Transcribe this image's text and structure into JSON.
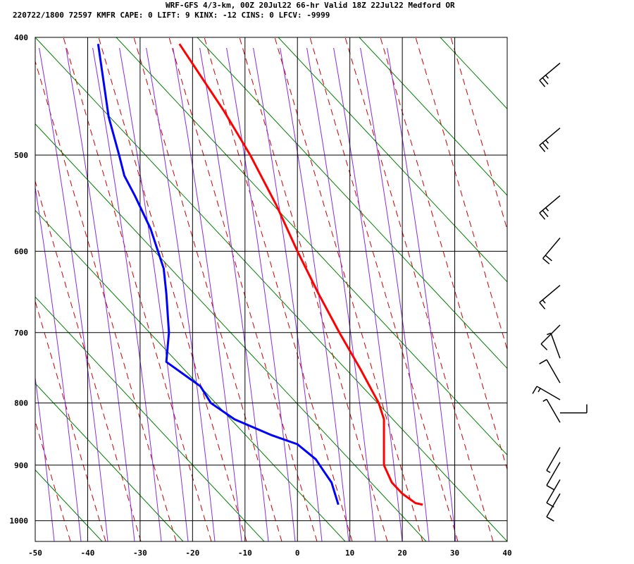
{
  "header": {
    "line1": "WRF-GFS 4/3-km, 00Z 20Jul22 66-hr Valid 18Z 22Jul22 Medford OR",
    "line2": "220722/1800 72597  KMFR    CAPE:      0 LIFT:      9 KINX:    -12 CINS:      0 LFCV: -9999"
  },
  "chart_data": {
    "type": "skew-t",
    "title": "WRF-GFS 4/3-km, 00Z 20Jul22 66-hr Valid 18Z 22Jul22 Medford OR",
    "xlabel": "",
    "ylabel": "",
    "pressure_log_scale": true,
    "xlim": [
      -50,
      40
    ],
    "ylim_hpa": [
      1040,
      400
    ],
    "x_ticks": [
      -50,
      -40,
      -30,
      -20,
      -10,
      0,
      10,
      20,
      30,
      40
    ],
    "x_tick_labels": [
      "-50",
      "-40",
      "-30",
      "-20",
      "-10",
      "0",
      "10",
      "20",
      "30",
      "40"
    ],
    "y_ticks": [
      400,
      500,
      600,
      700,
      800,
      900,
      1000
    ],
    "y_tick_labels": [
      "400",
      "500",
      "600",
      "700",
      "800",
      "900",
      "1000"
    ],
    "grid": true,
    "colors": {
      "temperature": "#ff0000",
      "dewpoint": "#0000ff",
      "isotherm": "#000000",
      "dry_adiabat": "#cc0000",
      "moist_adiabat": "#8a2be2",
      "mixing_ratio": "#008000",
      "wind_barb": "#000000"
    },
    "series": [
      {
        "name": "temperature",
        "points": [
          {
            "p": 970,
            "t": 23.9
          },
          {
            "p": 967,
            "t": 22.5
          },
          {
            "p": 950,
            "t": 20.0
          },
          {
            "p": 930,
            "t": 18.0
          },
          {
            "p": 900,
            "t": 16.5
          },
          {
            "p": 850,
            "t": 16.5
          },
          {
            "p": 825,
            "t": 16.5
          },
          {
            "p": 800,
            "t": 15.5
          },
          {
            "p": 750,
            "t": 12.0
          },
          {
            "p": 700,
            "t": 8.0
          },
          {
            "p": 650,
            "t": 4.0
          },
          {
            "p": 600,
            "t": 0.0
          },
          {
            "p": 550,
            "t": -4.0
          },
          {
            "p": 500,
            "t": -9.0
          },
          {
            "p": 460,
            "t": -14.0
          },
          {
            "p": 405,
            "t": -22.5
          }
        ]
      },
      {
        "name": "dewpoint",
        "points": [
          {
            "p": 970,
            "t": 7.8
          },
          {
            "p": 930,
            "t": 6.5
          },
          {
            "p": 910,
            "t": 5.0
          },
          {
            "p": 890,
            "t": 3.5
          },
          {
            "p": 865,
            "t": 0.0
          },
          {
            "p": 850,
            "t": -5.0
          },
          {
            "p": 825,
            "t": -12.0
          },
          {
            "p": 800,
            "t": -16.5
          },
          {
            "p": 775,
            "t": -18.5
          },
          {
            "p": 740,
            "t": -25.0
          },
          {
            "p": 700,
            "t": -24.5
          },
          {
            "p": 650,
            "t": -25.0
          },
          {
            "p": 620,
            "t": -25.5
          },
          {
            "p": 575,
            "t": -28.0
          },
          {
            "p": 540,
            "t": -31.0
          },
          {
            "p": 520,
            "t": -33.0
          },
          {
            "p": 500,
            "t": -34.0
          },
          {
            "p": 465,
            "t": -36.0
          },
          {
            "p": 405,
            "t": -38.0
          }
        ]
      }
    ],
    "wind_barbs": [
      {
        "p": 420,
        "dir": 230,
        "speed": 25
      },
      {
        "p": 475,
        "dir": 230,
        "speed": 25
      },
      {
        "p": 540,
        "dir": 230,
        "speed": 25
      },
      {
        "p": 585,
        "dir": 220,
        "speed": 20
      },
      {
        "p": 640,
        "dir": 230,
        "speed": 15
      },
      {
        "p": 690,
        "dir": 225,
        "speed": 10
      },
      {
        "p": 735,
        "dir": 340,
        "speed": 5
      },
      {
        "p": 770,
        "dir": 330,
        "speed": 10
      },
      {
        "p": 795,
        "dir": 300,
        "speed": 15
      },
      {
        "p": 815,
        "dir": 90,
        "speed": 10
      },
      {
        "p": 830,
        "dir": 330,
        "speed": 5
      },
      {
        "p": 870,
        "dir": 210,
        "speed": 5
      },
      {
        "p": 895,
        "dir": 210,
        "speed": 10
      },
      {
        "p": 925,
        "dir": 210,
        "speed": 10
      },
      {
        "p": 950,
        "dir": 210,
        "speed": 10
      }
    ]
  }
}
